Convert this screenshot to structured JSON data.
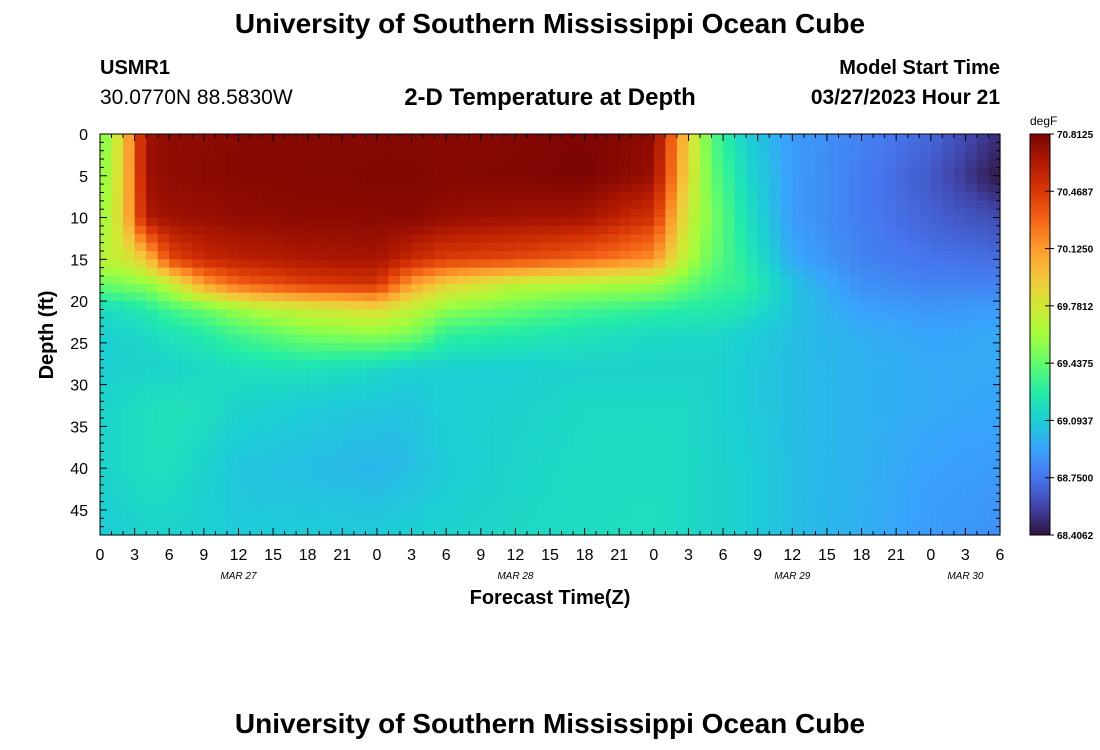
{
  "header": {
    "title": "University of Southern Mississippi Ocean Cube",
    "station_id": "USMR1",
    "station_location": "30.0770N  88.5830W",
    "subtitle": "2-D Temperature at Depth",
    "model_start_label": "Model Start Time",
    "model_start_value": "03/27/2023 Hour 21"
  },
  "footer": {
    "title": "University of Southern Mississippi Ocean Cube"
  },
  "colors": {
    "scale": [
      "#30123b",
      "#4145ab",
      "#4675ed",
      "#39a2fc",
      "#1bcfd4",
      "#24eca6",
      "#61fc6c",
      "#a4fc3b",
      "#d1e834",
      "#f3c63a",
      "#fe9b2d",
      "#f36315",
      "#d93806",
      "#b11901",
      "#7a0403"
    ]
  },
  "chart_data": {
    "type": "heatmap",
    "title": "2-D Temperature at Depth",
    "xlabel": "Forecast Time(Z)",
    "ylabel": "Depth (ft)",
    "x_ticks": [
      "0",
      "3",
      "6",
      "9",
      "12",
      "15",
      "18",
      "21",
      "0",
      "3",
      "6",
      "9",
      "12",
      "15",
      "18",
      "21",
      "0",
      "3",
      "6",
      "9",
      "12",
      "15",
      "18",
      "21",
      "0",
      "3",
      "6"
    ],
    "x_range_hours": [
      0,
      78
    ],
    "day_labels": [
      {
        "label": "MAR 27",
        "hour": 12
      },
      {
        "label": "MAR 28",
        "hour": 36
      },
      {
        "label": "MAR 29",
        "hour": 60
      },
      {
        "label": "MAR 30",
        "hour": 75
      }
    ],
    "y_ticks": [
      0,
      5,
      10,
      15,
      20,
      25,
      30,
      35,
      40,
      45
    ],
    "y_range": [
      0,
      48
    ],
    "colorbar": {
      "unit": "degF",
      "min": 68.40625,
      "max": 70.8125,
      "ticks": [
        "70.8125",
        "70.4687",
        "70.1250",
        "69.7812",
        "69.4375",
        "69.0937",
        "68.7500",
        "68.4062"
      ]
    },
    "x_hours": [
      0,
      2,
      4,
      6,
      9,
      12,
      18,
      24,
      27,
      30,
      36,
      42,
      48,
      51,
      53,
      56,
      60,
      66,
      72,
      78
    ],
    "depths": [
      0,
      5,
      10,
      15,
      18,
      21,
      24,
      28,
      33,
      40,
      48
    ],
    "values": [
      [
        69.45,
        69.9,
        70.7,
        70.75,
        70.75,
        70.77,
        70.78,
        70.78,
        70.78,
        70.77,
        70.78,
        70.8,
        70.75,
        69.9,
        69.4,
        69.1,
        68.9,
        68.8,
        68.7,
        68.5
      ],
      [
        69.5,
        69.9,
        70.7,
        70.75,
        70.76,
        70.77,
        70.78,
        70.79,
        70.79,
        70.78,
        70.79,
        70.81,
        70.72,
        69.85,
        69.45,
        69.15,
        68.9,
        68.78,
        68.65,
        68.42
      ],
      [
        69.55,
        69.9,
        70.65,
        70.7,
        70.72,
        70.74,
        70.76,
        70.76,
        70.77,
        70.73,
        70.7,
        70.68,
        70.5,
        69.75,
        69.5,
        69.2,
        68.9,
        68.78,
        68.68,
        68.6
      ],
      [
        69.7,
        69.75,
        69.95,
        70.4,
        70.55,
        70.6,
        70.65,
        70.68,
        70.55,
        70.45,
        70.4,
        70.3,
        70.15,
        69.65,
        69.45,
        69.25,
        68.95,
        68.8,
        68.75,
        68.72
      ],
      [
        69.45,
        69.5,
        69.55,
        69.7,
        70.1,
        70.3,
        70.45,
        70.5,
        70.1,
        69.9,
        69.7,
        69.65,
        69.6,
        69.45,
        69.35,
        69.3,
        69.05,
        68.85,
        68.8,
        68.8
      ],
      [
        69.15,
        69.2,
        69.25,
        69.35,
        69.45,
        69.6,
        69.75,
        69.85,
        69.7,
        69.55,
        69.45,
        69.35,
        69.3,
        69.25,
        69.25,
        69.2,
        69.05,
        68.92,
        68.88,
        68.9
      ],
      [
        69.1,
        69.12,
        69.15,
        69.2,
        69.25,
        69.35,
        69.5,
        69.55,
        69.5,
        69.3,
        69.25,
        69.2,
        69.15,
        69.15,
        69.15,
        69.1,
        69.03,
        68.97,
        68.93,
        68.95
      ],
      [
        69.1,
        69.12,
        69.12,
        69.12,
        69.15,
        69.18,
        69.2,
        69.15,
        69.1,
        69.1,
        69.1,
        69.12,
        69.12,
        69.12,
        69.12,
        69.08,
        69.03,
        68.98,
        68.95,
        68.95
      ],
      [
        69.12,
        69.15,
        69.18,
        69.2,
        69.18,
        69.12,
        69.08,
        69.05,
        69.05,
        69.1,
        69.12,
        69.15,
        69.15,
        69.15,
        69.12,
        69.08,
        69.03,
        68.98,
        68.95,
        68.93
      ],
      [
        69.12,
        69.15,
        69.18,
        69.18,
        69.12,
        69.05,
        69.03,
        69.0,
        69.03,
        69.08,
        69.13,
        69.16,
        69.17,
        69.15,
        69.13,
        69.1,
        69.03,
        68.98,
        68.92,
        68.9
      ],
      [
        69.08,
        69.1,
        69.12,
        69.12,
        69.1,
        69.08,
        69.08,
        69.08,
        69.1,
        69.12,
        69.15,
        69.17,
        69.18,
        69.15,
        69.13,
        69.1,
        69.03,
        68.97,
        68.9,
        68.85
      ]
    ]
  }
}
